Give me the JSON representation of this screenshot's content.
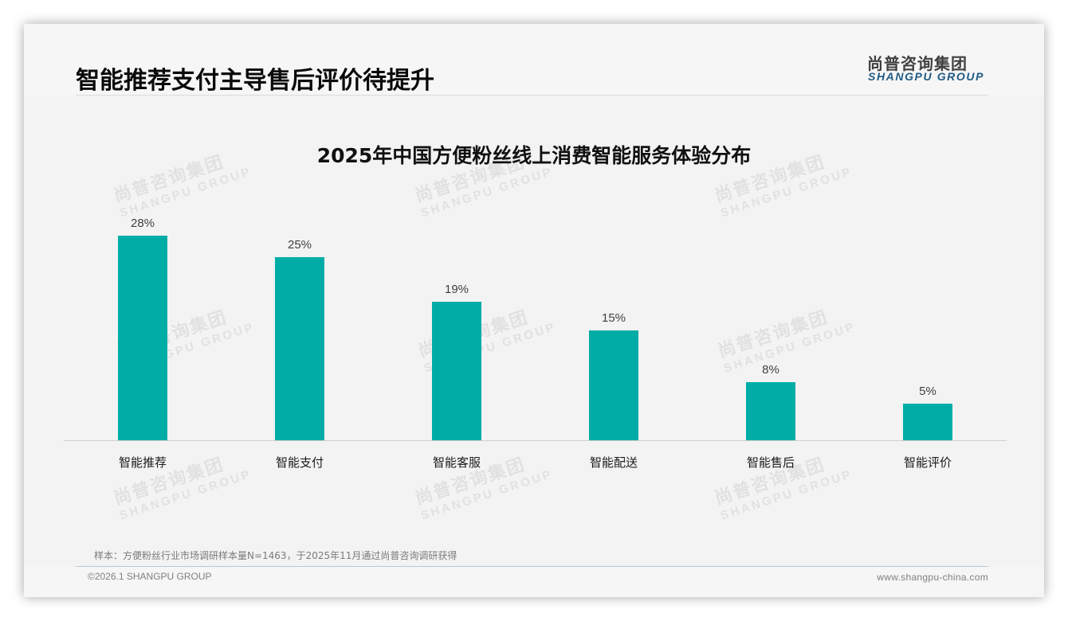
{
  "header": {
    "title": "智能推荐支付主导售后评价待提升",
    "logo_cn": "尚普咨询集团",
    "logo_en": "SHANGPU GROUP"
  },
  "watermark": {
    "cn": "尚普咨询集团",
    "en": "SHANGPU GROUP"
  },
  "chart_data": {
    "type": "bar",
    "title": "2025年中国方便粉丝线上消费智能服务体验分布",
    "xlabel": "",
    "ylabel": "",
    "categories": [
      "智能推荐",
      "智能支付",
      "智能客服",
      "智能配送",
      "智能售后",
      "智能评价"
    ],
    "values": [
      28,
      25,
      19,
      15,
      8,
      5
    ],
    "value_labels": [
      "28%",
      "25%",
      "19%",
      "15%",
      "8%",
      "5%"
    ],
    "unit": "%",
    "ylim": [
      0,
      30
    ],
    "grid": false,
    "legend": "none",
    "bar_color": "#00ada6"
  },
  "footer": {
    "footnote": "样本：方便粉丝行业市场调研样本量N=1463，于2025年11月通过尚普咨询调研获得",
    "copyright": "©2026.1 SHANGPU GROUP",
    "website": "www.shangpu-china.com"
  }
}
